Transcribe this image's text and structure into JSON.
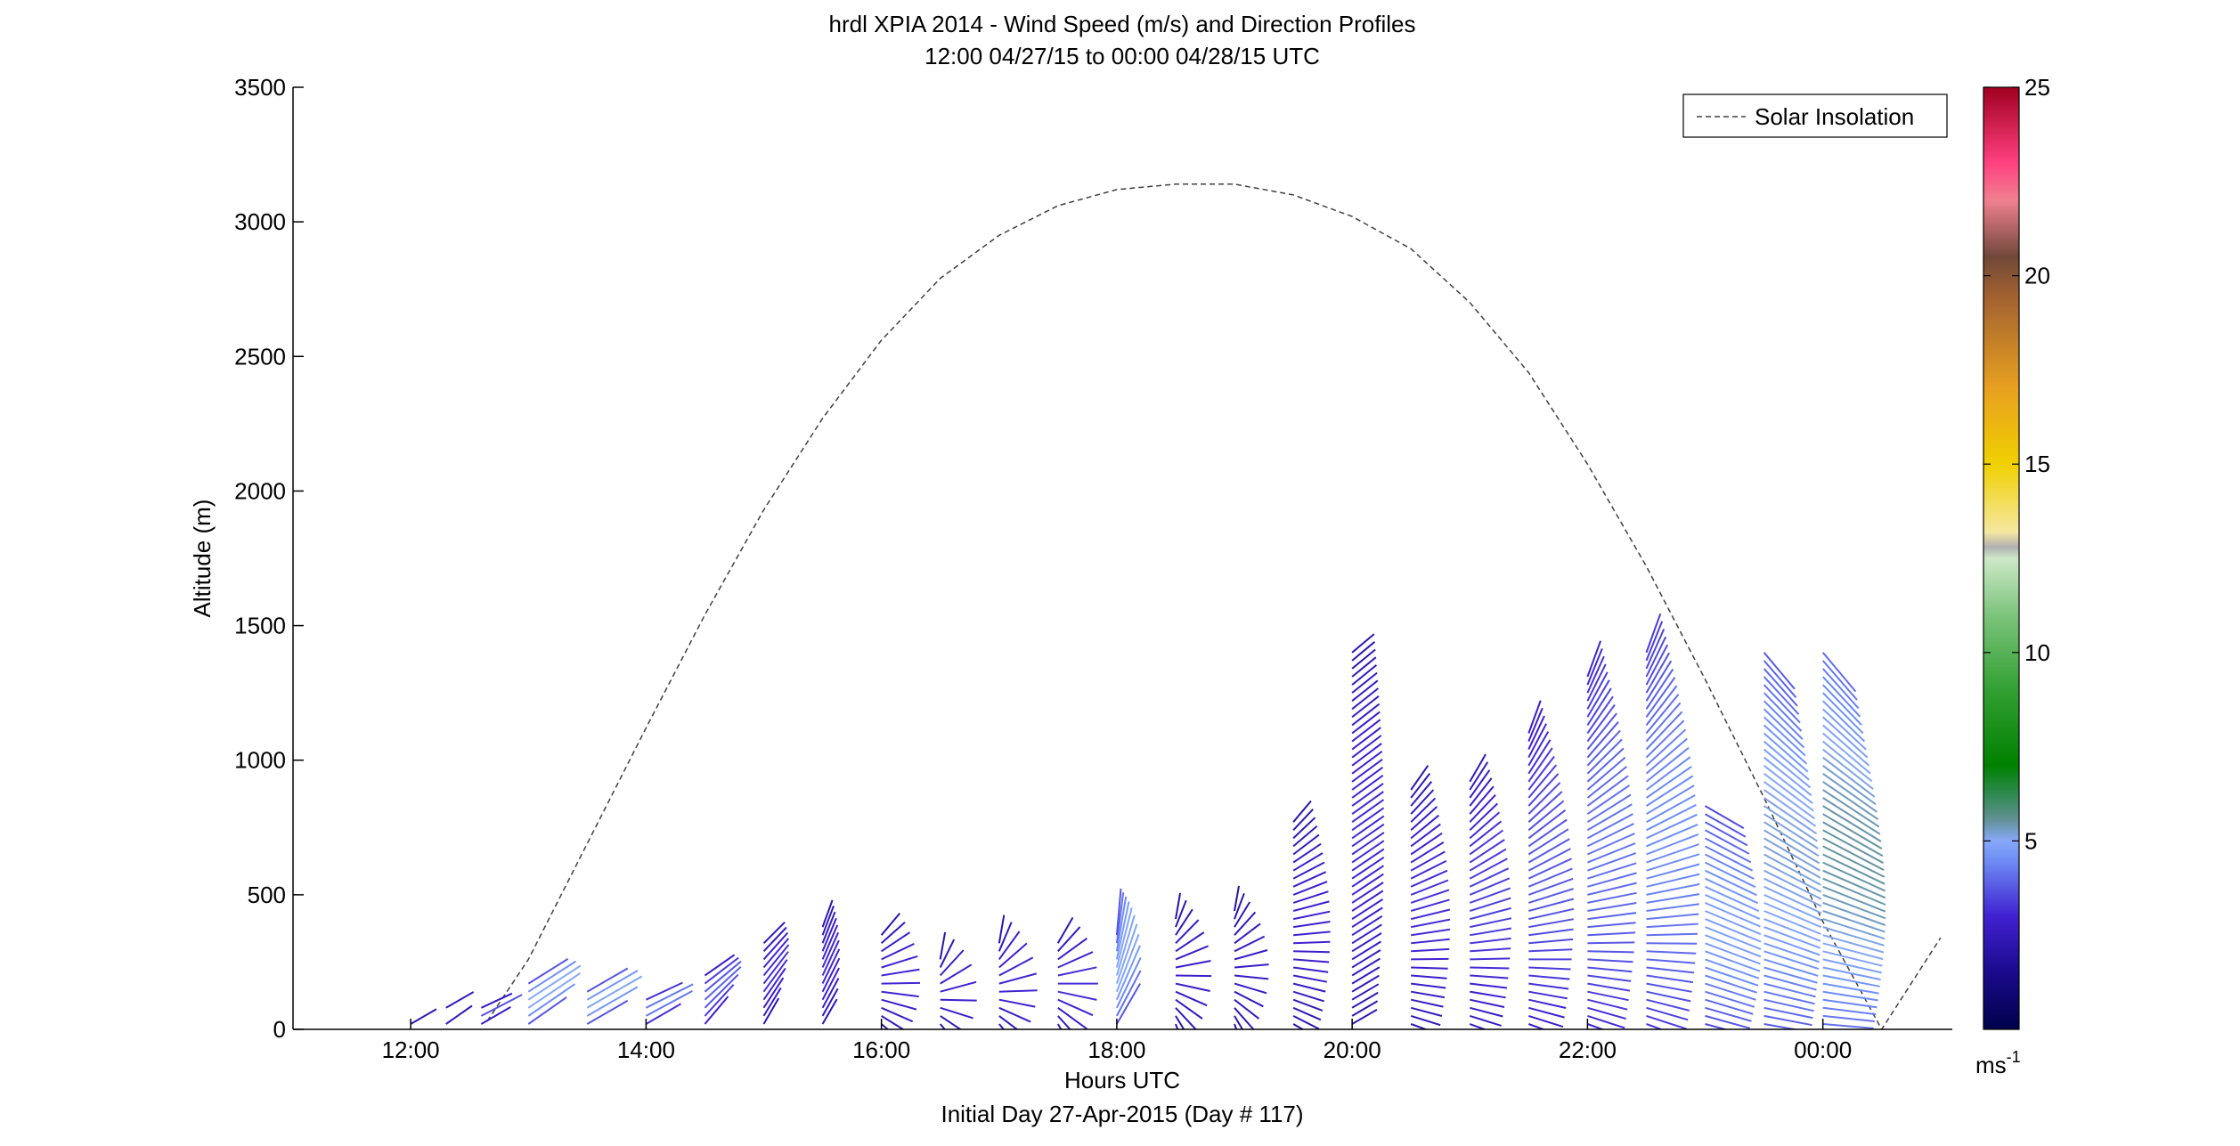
{
  "chart_data": {
    "type": "scatter",
    "title": "hrdl XPIA 2014 - Wind Speed (m/s) and Direction Profiles",
    "subtitle": "12:00 04/27/15 to 00:00 04/28/15  UTC",
    "xlabel": "Hours UTC",
    "xlabel2": "Initial Day 27-Apr-2015 (Day # 117)",
    "ylabel": "Altitude (m)",
    "xlim": [
      11.0,
      25.1
    ],
    "ylim": [
      0,
      3500
    ],
    "x_ticks": [
      12,
      14,
      16,
      18,
      20,
      22,
      24
    ],
    "x_tick_labels": [
      "12:00",
      "14:00",
      "16:00",
      "18:00",
      "20:00",
      "22:00",
      "00:00"
    ],
    "y_ticks": [
      0,
      500,
      1000,
      1500,
      2000,
      2500,
      3000,
      3500
    ],
    "y_tick_labels": [
      "0",
      "500",
      "1000",
      "1500",
      "2000",
      "2500",
      "3000",
      "3500"
    ],
    "legend": {
      "label": "Solar Insolation",
      "placement": "top-right",
      "style": "dashed",
      "color": "#404040"
    },
    "solar_insolation": {
      "x": [
        12.65,
        13.0,
        13.5,
        14.0,
        14.5,
        15.0,
        15.5,
        16.0,
        16.5,
        17.0,
        17.5,
        18.0,
        18.5,
        19.0,
        19.5,
        20.0,
        20.5,
        21.0,
        21.5,
        22.0,
        22.5,
        23.0,
        23.5,
        24.0,
        24.5,
        25.0
      ],
      "y": [
        30,
        260,
        690,
        1120,
        1540,
        1930,
        2270,
        2560,
        2790,
        2950,
        3060,
        3120,
        3140,
        3140,
        3100,
        3020,
        2900,
        2700,
        2440,
        2100,
        1720,
        1300,
        860,
        400,
        0,
        340
      ]
    },
    "wind_profiles": [
      {
        "time": 12.0,
        "top": 60,
        "speed": 2.8,
        "dir_low": 240,
        "dir_high": 240,
        "step": 60
      },
      {
        "time": 12.3,
        "top": 80,
        "speed": 3.0,
        "dir_low": 235,
        "dir_high": 240,
        "step": 60
      },
      {
        "time": 12.6,
        "top": 90,
        "speed": 3.2,
        "dir_low": 240,
        "dir_high": 245,
        "step": 30
      },
      {
        "time": 13.0,
        "top": 180,
        "speed": 4.4,
        "dir_low": 235,
        "dir_high": 238,
        "step": 30
      },
      {
        "time": 13.5,
        "top": 150,
        "speed": 4.4,
        "dir_low": 240,
        "dir_high": 240,
        "step": 30
      },
      {
        "time": 14.0,
        "top": 130,
        "speed": 3.8,
        "dir_low": 240,
        "dir_high": 245,
        "step": 30
      },
      {
        "time": 14.5,
        "top": 210,
        "speed": 3.4,
        "dir_low": 220,
        "dir_high": 235,
        "step": 30
      },
      {
        "time": 15.0,
        "top": 320,
        "speed": 2.8,
        "dir_low": 210,
        "dir_high": 225,
        "step": 30
      },
      {
        "time": 15.5,
        "top": 380,
        "speed": 2.7,
        "dir_low": 210,
        "dir_high": 200,
        "step": 30
      },
      {
        "time": 16.0,
        "top": 370,
        "speed": 2.7,
        "dir_low": 310,
        "dir_high": 220,
        "step": 30
      },
      {
        "time": 16.5,
        "top": 260,
        "speed": 2.6,
        "dir_low": 320,
        "dir_high": 190,
        "step": 30
      },
      {
        "time": 17.0,
        "top": 320,
        "speed": 2.7,
        "dir_low": 320,
        "dir_high": 190,
        "step": 30
      },
      {
        "time": 17.5,
        "top": 320,
        "speed": 2.8,
        "dir_low": 330,
        "dir_high": 210,
        "step": 30
      },
      {
        "time": 18.0,
        "top": 350,
        "speed": 4.4,
        "dir_low": 210,
        "dir_high": 185,
        "step": 30
      },
      {
        "time": 18.5,
        "top": 430,
        "speed": 2.5,
        "dir_low": 340,
        "dir_high": 190,
        "step": 30
      },
      {
        "time": 19.0,
        "top": 460,
        "speed": 2.4,
        "dir_low": 340,
        "dir_high": 190,
        "step": 30
      },
      {
        "time": 19.5,
        "top": 790,
        "speed": 2.6,
        "dir_low": 300,
        "dir_high": 220,
        "step": 30
      },
      {
        "time": 20.0,
        "top": 1420,
        "speed": 2.7,
        "dir_low": 240,
        "dir_high": 230,
        "step": 30
      },
      {
        "time": 20.5,
        "top": 890,
        "speed": 2.8,
        "dir_low": 290,
        "dir_high": 215,
        "step": 30
      },
      {
        "time": 21.0,
        "top": 940,
        "speed": 3.0,
        "dir_low": 290,
        "dir_high": 210,
        "step": 30
      },
      {
        "time": 21.5,
        "top": 1120,
        "speed": 3.3,
        "dir_low": 290,
        "dir_high": 200,
        "step": 30
      },
      {
        "time": 22.0,
        "top": 1310,
        "speed": 3.6,
        "dir_low": 290,
        "dir_high": 200,
        "step": 30
      },
      {
        "time": 22.5,
        "top": 1400,
        "speed": 3.9,
        "dir_low": 290,
        "dir_high": 200,
        "step": 30
      },
      {
        "time": 23.0,
        "top": 830,
        "speed": 4.2,
        "dir_low": 285,
        "dir_high": 300,
        "step": 30
      },
      {
        "time": 23.5,
        "top": 1420,
        "speed": 4.5,
        "dir_low": 280,
        "dir_high": 320,
        "step": 30
      },
      {
        "time": 24.0,
        "top": 1420,
        "speed": 4.8,
        "dir_low": 275,
        "dir_high": 320,
        "step": 30
      }
    ],
    "colorbar": {
      "label": "ms",
      "label_superscript": "-1",
      "ticks": [
        5,
        10,
        15,
        20,
        25
      ],
      "range": [
        0,
        25
      ],
      "stops": [
        {
          "v": 0,
          "color": "#00004a"
        },
        {
          "v": 1.5,
          "color": "#1a0a8c"
        },
        {
          "v": 3.0,
          "color": "#4020d0"
        },
        {
          "v": 4.5,
          "color": "#6f8ef5"
        },
        {
          "v": 5.0,
          "color": "#87a8f8"
        },
        {
          "v": 5.6,
          "color": "#5f9090"
        },
        {
          "v": 6.3,
          "color": "#2a8a4a"
        },
        {
          "v": 7.0,
          "color": "#008000"
        },
        {
          "v": 9.0,
          "color": "#32a032"
        },
        {
          "v": 11.0,
          "color": "#7cc47c"
        },
        {
          "v": 12.5,
          "color": "#cde8c8"
        },
        {
          "v": 12.8,
          "color": "#b0b0b0"
        },
        {
          "v": 13.2,
          "color": "#f5e8a0"
        },
        {
          "v": 15.0,
          "color": "#f0d000"
        },
        {
          "v": 17.0,
          "color": "#e8a020"
        },
        {
          "v": 19.5,
          "color": "#a06030"
        },
        {
          "v": 20.5,
          "color": "#704838"
        },
        {
          "v": 22.0,
          "color": "#f08090"
        },
        {
          "v": 23.0,
          "color": "#ff4080"
        },
        {
          "v": 25.0,
          "color": "#a00020"
        }
      ]
    }
  }
}
